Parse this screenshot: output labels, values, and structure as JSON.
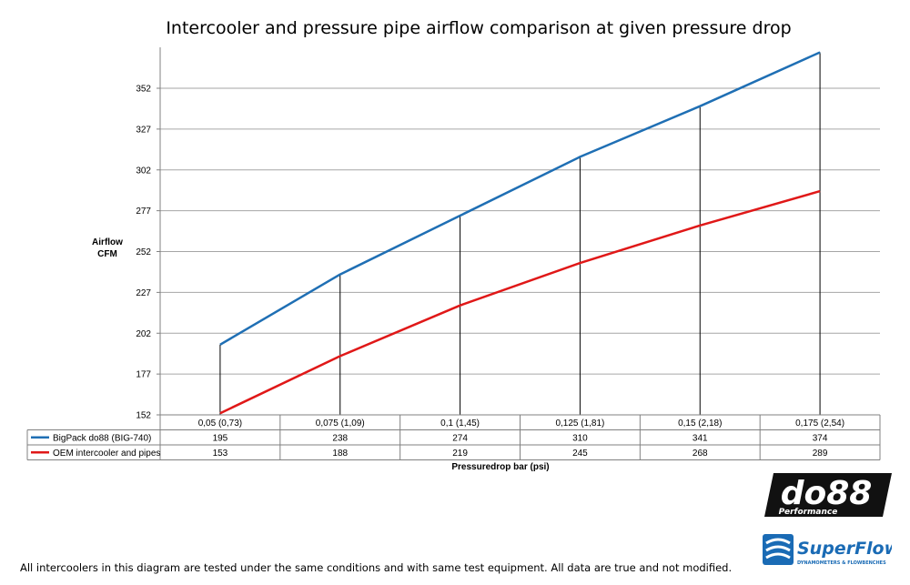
{
  "chart_data": {
    "type": "line",
    "title": "Intercooler and pressure pipe airflow comparison at given pressure drop",
    "ylabel": [
      "Airflow",
      "CFM"
    ],
    "xlabel": "Pressuredrop bar (psi)",
    "categories": [
      "0,05 (0,73)",
      "0,075 (1,09)",
      "0,1 (1,45)",
      "0,125 (1,81)",
      "0,15 (2,18)",
      "0,175 (2,54)"
    ],
    "yticks": [
      152,
      177,
      202,
      227,
      252,
      277,
      302,
      327,
      352
    ],
    "ylim": [
      152,
      374
    ],
    "grid": true,
    "legend_placement": "data-table",
    "series": [
      {
        "name": "BigPack do88 (BIG-740)",
        "color": "#1f6fb4",
        "values": [
          195,
          238,
          274,
          310,
          341,
          374
        ]
      },
      {
        "name": "OEM intercooler and pipes",
        "color": "#e01818",
        "values": [
          153,
          188,
          219,
          245,
          268,
          289
        ]
      }
    ]
  },
  "footnote": "All intercoolers in this diagram are tested under the same conditions and with same test equipment. All data are true and not modified.",
  "logos": {
    "do88_main": "do88",
    "do88_sub": "Performance",
    "superflow_main": "SuperFlow",
    "superflow_sub": "DYNAMOMETERS & FLOWBENCHES"
  }
}
